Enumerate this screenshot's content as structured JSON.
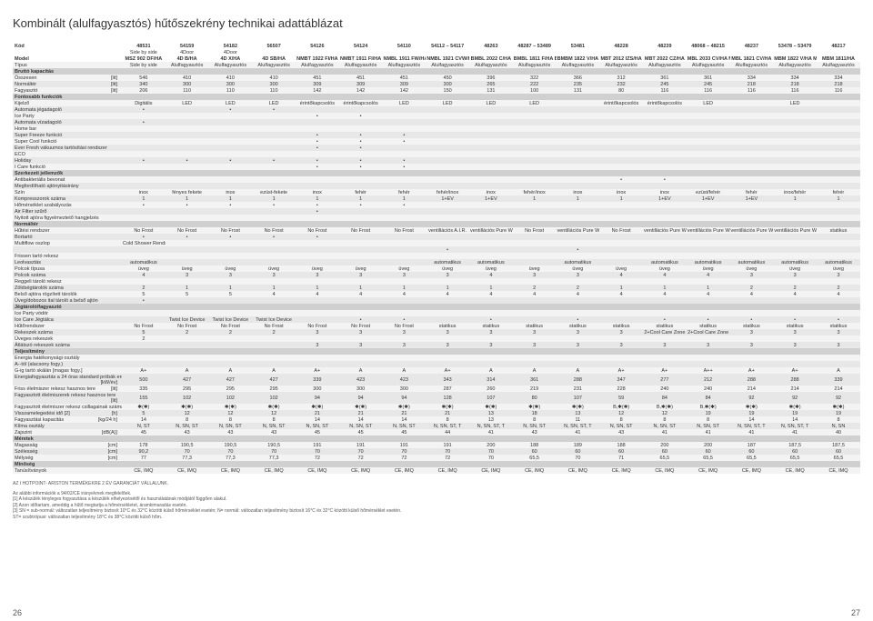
{
  "title": "Kombinált (alulfagyasztós) hűtőszekrény technikai adattáblázat",
  "pageL": "26",
  "pageR": "27",
  "warranty": "AZ I HOTPOINT- ARISTON TERMÉKEKRE 2 ÉV GARANCIÁT VÁLLALUNK.",
  "fn": [
    "Az alábbi információk a 94/02/CE irányelvnek megfelelőek.",
    "[1]  A készülék tényleges fogyasztása a készülék elhelyezésétől és használatának módjától függően alakul.",
    "[2]  Azon időtartam, ameddig a hűtő megtartja a hőmérsékletet, áramkimaradás esetén.",
    "[3]  SN = sub-normál: változatlan teljesítmény biztosít 10°C és 32°C közötti külső hőmérséklet esetén; N= normál: változatlan teljesítmény biztosít 16°C és 32°C közötti külső hőmérséklet esetén.",
    "ST= szubtrópusi: változatlan teljesítmény 18°C és 38°C közötti külső hőm."
  ],
  "cols": [
    "48531",
    "54159",
    "54182",
    "56507",
    "54126",
    "54124",
    "54110",
    "54112 – 54117",
    "48263",
    "48287 – 53489",
    "53481",
    "48228",
    "48239",
    "48068 – 48215",
    "48237",
    "53478 – 53479",
    "48217"
  ],
  "cols2": [
    "Side by side",
    "4Door",
    "4Door",
    "",
    "",
    "",
    "",
    "",
    "",
    "",
    "",
    "",
    "",
    "",
    "",
    "",
    ""
  ],
  "model": [
    "MSZ 902 DF/HA",
    "4D B/HA",
    "4D X/HA",
    "4D SB/HA",
    "NMBT 1922 FI/HA",
    "NMBT 1911 FI/HA",
    "NMBL 1911 FW/HA",
    "NMBL 1921 CVW/HA NMBL 1922 CVW/HA",
    "BMBL 2022 C/HA",
    "BMBL 1811 F/HA BMBL 1812 F/HA",
    "BMBM 1822 V/HA",
    "MBT 2012 IZS/HA",
    "MBT 2022 CZ/HA",
    "MBL 2033 CV/HA MBL 2031 CV/HA",
    "MBL 1821 CV/HA",
    "MBM 1822 V/HA MBM 1821 V/HA",
    "MBM 1811/HA"
  ],
  "rows": [
    {
      "k": "Típus",
      "v": [
        "Side by side",
        "Alulfagyasztós",
        "Alulfagyasztós",
        "Alulfagyasztós",
        "Alulfagyasztós",
        "Alulfagyasztós",
        "Alulfagyasztós",
        "Alulfagyasztós",
        "Alulfagyasztós",
        "Alulfagyasztós",
        "Alulfagyasztós",
        "Alulfagyasztós",
        "Alulfagyasztós",
        "Alulfagyasztós",
        "Alulfagyasztós",
        "Alulfagyasztós",
        "Alulfagyasztós"
      ]
    },
    {
      "sec": "Bruttó kapacitás"
    },
    {
      "k": "Összesen",
      "u": "[lit]",
      "v": [
        "546",
        "410",
        "410",
        "410",
        "451",
        "451",
        "451",
        "450",
        "396",
        "322",
        "366",
        "312",
        "361",
        "361",
        "334",
        "334",
        "334"
      ]
    },
    {
      "k": "Normáltér",
      "u": "[lit]",
      "v": [
        "340",
        "300",
        "300",
        "300",
        "309",
        "309",
        "309",
        "300",
        "265",
        "222",
        "235",
        "232",
        "245",
        "245",
        "218",
        "218",
        "218"
      ]
    },
    {
      "k": "Fagyasztó",
      "u": "[lit]",
      "v": [
        "206",
        "110",
        "110",
        "110",
        "142",
        "142",
        "142",
        "150",
        "131",
        "100",
        "131",
        "80",
        "116",
        "116",
        "116",
        "116",
        "116"
      ]
    },
    {
      "sec": "Fontosabb funkciók"
    },
    {
      "k": "Kijelző",
      "v": [
        "Digitális",
        "LED",
        "LED",
        "LED",
        "érintőkapcsolós",
        "érintőkapcsolós",
        "LED",
        "LED",
        "LED",
        "LED",
        "",
        "érintőkapcsolós",
        "érintőkapcsolós",
        "LED",
        "",
        "LED",
        ""
      ]
    },
    {
      "k": "Automata jégadagoló",
      "v": [
        "•",
        "",
        "•",
        "•",
        "",
        "",
        "",
        "",
        "",
        "",
        "",
        "",
        "",
        "",
        "",
        "",
        ""
      ]
    },
    {
      "k": "Ice Party",
      "v": [
        "",
        "",
        "",
        "",
        "•",
        "•",
        "",
        "",
        "",
        "",
        "",
        "",
        "",
        "",
        "",
        "",
        ""
      ]
    },
    {
      "k": "Automata vízadagoló",
      "v": [
        "•",
        "",
        "",
        "",
        "",
        "",
        "",
        "",
        "",
        "",
        "",
        "",
        "",
        "",
        "",
        "",
        ""
      ]
    },
    {
      "k": "Home bar",
      "v": [
        "",
        "",
        "",
        "",
        "",
        "",
        "",
        "",
        "",
        "",
        "",
        "",
        "",
        "",
        "",
        "",
        ""
      ]
    },
    {
      "k": "Super Freeze funkció",
      "v": [
        "",
        "",
        "",
        "",
        "•",
        "•",
        "•",
        "",
        "",
        "",
        "",
        "",
        "",
        "",
        "",
        "",
        ""
      ]
    },
    {
      "k": "Super Cool funkció",
      "v": [
        "",
        "",
        "",
        "",
        "•",
        "•",
        "•",
        "",
        "",
        "",
        "",
        "",
        "",
        "",
        "",
        "",
        ""
      ]
    },
    {
      "k": "Ever Fresh vákuumos tartósítási rendszer",
      "v": [
        "",
        "",
        "",
        "",
        "•",
        "•",
        "",
        "",
        "",
        "",
        "",
        "",
        "",
        "",
        "",
        "",
        ""
      ]
    },
    {
      "k": "ECO",
      "v": [
        "",
        "",
        "",
        "",
        "",
        "",
        "",
        "",
        "",
        "",
        "",
        "",
        "",
        "",
        "",
        "",
        ""
      ]
    },
    {
      "k": "Holiday",
      "v": [
        "•",
        "•",
        "•",
        "•",
        "•",
        "•",
        "•",
        "",
        "",
        "",
        "",
        "",
        "",
        "",
        "",
        "",
        ""
      ]
    },
    {
      "k": "I Care funkció",
      "v": [
        "",
        "",
        "",
        "",
        "•",
        "•",
        "•",
        "",
        "",
        "",
        "",
        "",
        "",
        "",
        "",
        "",
        ""
      ]
    },
    {
      "sec": "Szerkezeti jellemzők"
    },
    {
      "k": "Antibakteriális bevonat",
      "v": [
        "",
        "",
        "",
        "",
        "",
        "",
        "",
        "",
        "",
        "",
        "",
        "•",
        "•",
        "",
        "",
        "",
        ""
      ]
    },
    {
      "k": "Megfordítható ajtónyitásirány",
      "v": [
        "",
        "",
        "",
        "",
        "",
        "",
        "",
        "",
        "",
        "",
        "",
        "",
        "",
        "",
        "",
        "",
        ""
      ]
    },
    {
      "k": "Szín",
      "v": [
        "inox",
        "fényes fekete",
        "inox",
        "ezüst-fekete",
        "inox",
        "fehér",
        "fehér",
        "fehér/inox",
        "inox",
        "fehér/inox",
        "inox",
        "inox",
        "inox",
        "ezüst/fehér",
        "fehér",
        "inox/fehér",
        "fehér"
      ]
    },
    {
      "k": "Kompresszorok száma",
      "v": [
        "1",
        "1",
        "1",
        "1",
        "1",
        "1",
        "1",
        "1+EV",
        "1+EV",
        "1",
        "1",
        "1",
        "1+EV",
        "1+EV",
        "1+EV",
        "1",
        "1"
      ]
    },
    {
      "k": "Hőmérséklet szabályozás",
      "v": [
        "•",
        "•",
        "•",
        "•",
        "•",
        "•",
        "•",
        "",
        "",
        "",
        "",
        "",
        "",
        "",
        "",
        "",
        ""
      ]
    },
    {
      "k": "Air Filter szűrő",
      "v": [
        "",
        "",
        "",
        "",
        "•",
        "",
        "",
        "",
        "",
        "",
        "",
        "",
        "",
        "",
        "",
        "",
        ""
      ]
    },
    {
      "k": "Nyitott ajtóra figyelmeztető hangjelzés",
      "v": [
        "",
        "",
        "",
        "",
        "",
        "",
        "",
        "",
        "",
        "",
        "",
        "",
        "",
        "",
        "",
        "",
        ""
      ]
    },
    {
      "sec": "Normáltér"
    },
    {
      "k": "Hűtési rendszer",
      "v": [
        "No Frost",
        "No Frost",
        "No Frost",
        "No Frost",
        "No Frost",
        "No Frost",
        "No Frost",
        "ventillációs A.I.R.",
        "ventillációs Pure Wind",
        "No Frost",
        "ventillációs Pure Wind Plus",
        "No Frost",
        "ventillációs Pure Wind",
        "ventillációs Pure Wind",
        "ventillációs Pure Wind Wine Area",
        "ventillációs Pure Wind Wine Area",
        "statikus"
      ]
    },
    {
      "k": "Bortartó",
      "v": [
        "•",
        "•",
        "•",
        "•",
        "•",
        "",
        "",
        "",
        "",
        "",
        "",
        "",
        "",
        "",
        "",
        "",
        ""
      ]
    },
    {
      "k": "Multiflow oszlop",
      "v": [
        "Cold Shower Rendszer",
        "",
        "",
        "",
        "",
        "",
        "",
        "",
        "",
        "",
        "",
        "",
        "",
        "",
        "",
        "",
        ""
      ]
    },
    {
      "k": "",
      "v": [
        "",
        "",
        "",
        "",
        "",
        "",
        "",
        "•",
        "",
        "",
        "•",
        "",
        "",
        "",
        "",
        "",
        ""
      ]
    },
    {
      "k": "Frissen tartó rekesz",
      "v": [
        "",
        "",
        "",
        "",
        "",
        "",
        "",
        "",
        "",
        "",
        "",
        "",
        "",
        "",
        "",
        "",
        ""
      ]
    },
    {
      "k": "Leolvasztás",
      "v": [
        "automatikus",
        "",
        "",
        "",
        "",
        "",
        "",
        "automatikus",
        "automatikus",
        "",
        "automatikus",
        "",
        "automatikus",
        "automatikus",
        "automatikus",
        "automatikus",
        "automatikus"
      ]
    },
    {
      "k": "Polcok típusa",
      "v": [
        "üveg",
        "üveg",
        "üveg",
        "üveg",
        "üveg",
        "üveg",
        "üveg",
        "üveg",
        "üveg",
        "üveg",
        "üveg",
        "üveg",
        "üveg",
        "üveg",
        "üveg",
        "üveg",
        "üveg"
      ]
    },
    {
      "k": "Polcok száma",
      "v": [
        "4",
        "3",
        "3",
        "3",
        "3",
        "3",
        "3",
        "3",
        "4",
        "3",
        "3",
        "4",
        "4",
        "4",
        "3",
        "3",
        "3"
      ]
    },
    {
      "k": "Reggeli tároló rekesz",
      "v": [
        "",
        "",
        "",
        "",
        "",
        "",
        "",
        "",
        "",
        "",
        "",
        "",
        "",
        "",
        "",
        "",
        ""
      ]
    },
    {
      "k": "Zöldségtárolók száma",
      "v": [
        "2",
        "1",
        "1",
        "1",
        "1",
        "1",
        "1",
        "1",
        "1",
        "2",
        "2",
        "1",
        "1",
        "1",
        "2",
        "2",
        "2"
      ]
    },
    {
      "k": "Belső ajtóra rögzített tárolók",
      "v": [
        "5",
        "5",
        "5",
        "4",
        "4",
        "4",
        "4",
        "4",
        "4",
        "4",
        "4",
        "4",
        "4",
        "4",
        "4",
        "4",
        "4"
      ]
    },
    {
      "k": "Üveg/dobozos ital tároló a belső ajtón",
      "v": [
        "•",
        "",
        "",
        "",
        "",
        "",
        "",
        "",
        "",
        "",
        "",
        "",
        "",
        "",
        "",
        "",
        ""
      ]
    },
    {
      "sec": "Jégtároló/fagyasztó"
    },
    {
      "k": "Ice Party vödör",
      "v": [
        "",
        "",
        "",
        "",
        "",
        "",
        "",
        "",
        "",
        "",
        "",
        "",
        "",
        "",
        "",
        "",
        ""
      ]
    },
    {
      "k": "Ice Care Jégtálca",
      "v": [
        "",
        "Twist Ice Device",
        "Twist Ice Device",
        "Twist Ice Device",
        "",
        "•",
        "•",
        "",
        "•",
        "",
        "•",
        "",
        "•",
        "•",
        "•",
        "•",
        "•"
      ]
    },
    {
      "k": "Hűtőrendszer",
      "v": [
        "No Frost",
        "No Frost",
        "No Frost",
        "No Frost",
        "No Frost",
        "No Frost",
        "No Frost",
        "statikus",
        "statikus",
        "statikus",
        "statikus",
        "statikus",
        "statikus",
        "statikus",
        "statikus",
        "statikus",
        "statikus"
      ]
    },
    {
      "k": "Rekeszek száma",
      "v": [
        "5",
        "2",
        "2",
        "2",
        "3",
        "3",
        "3",
        "3",
        "3",
        "3",
        "3",
        "3",
        "2+Cool Care Zone",
        "2+Cool Care Zone",
        "3",
        "3",
        "3"
      ]
    },
    {
      "k": "Üveges rekeszek",
      "v": [
        "2",
        "",
        "",
        "",
        "",
        "",
        "",
        "",
        "",
        "",
        "",
        "",
        "",
        "",
        "",
        "",
        ""
      ]
    },
    {
      "k": "Átlátszó rekeszek száma",
      "v": [
        "",
        "",
        "",
        "",
        "3",
        "3",
        "3",
        "3",
        "3",
        "3",
        "3",
        "3",
        "3",
        "3",
        "3",
        "3",
        "3"
      ]
    },
    {
      "sec": "Teljesítmény"
    },
    {
      "k": "Energia hatékonysági osztály",
      "v": [
        "",
        "",
        "",
        "",
        "",
        "",
        "",
        "",
        "",
        "",
        "",
        "",
        "",
        "",
        "",
        "",
        ""
      ]
    },
    {
      "k": "A--tól (alacsony fogy.)",
      "v": [
        "",
        "",
        "",
        "",
        "",
        "",
        "",
        "",
        "",
        "",
        "",
        "",
        "",
        "",
        "",
        "",
        ""
      ]
    },
    {
      "k": "G-ig tartó skálán [magas fogy.]",
      "v": [
        "A+",
        "A",
        "A",
        "A",
        "A+",
        "A",
        "A",
        "A+",
        "A",
        "A",
        "A",
        "A+",
        "A+",
        "A++",
        "A+",
        "A+",
        "A"
      ]
    },
    {
      "k": "Energiafogyasztás a 24 óras standard próbák eredményei alapján [1]",
      "u": "[kW/év]",
      "v": [
        "500",
        "427",
        "427",
        "427",
        "339",
        "423",
        "423",
        "343",
        "314",
        "361",
        "288",
        "347",
        "277",
        "212",
        "288",
        "288",
        "339"
      ]
    },
    {
      "k": "Friss élelmiszer rekesz hasznos tere",
      "u": "[lit]",
      "v": [
        "335",
        "295",
        "295",
        "295",
        "300",
        "300",
        "300",
        "287",
        "260",
        "219",
        "231",
        "228",
        "240",
        "240",
        "214",
        "214",
        "214"
      ]
    },
    {
      "k": "Fagyasztott élelmiszerek rekesz hasznos tere",
      "u": "[lit]",
      "v": [
        "155",
        "102",
        "102",
        "102",
        "94",
        "94",
        "94",
        "128",
        "107",
        "80",
        "107",
        "59",
        "84",
        "84",
        "92",
        "92",
        "92"
      ]
    },
    {
      "k": "Fagyasztott élelmiszer rekesz csillagainak száma",
      "v": [
        "✱(✱)",
        "✱(✱)",
        "✱(✱)",
        "✱(✱)",
        "✱(✱)",
        "✱(✱)",
        "✱(✱)",
        "✱(✱)",
        "✱(✱)",
        "✱(✱)",
        "✱(✱)",
        "B,✱(✱)",
        "B,✱(✱)",
        "B,✱(✱)",
        "✱(✱)",
        "✱(✱)",
        "✱(✱)"
      ]
    },
    {
      "k": "Visszamelegedési idő [2]",
      "u": "[h]",
      "v": [
        "5",
        "12",
        "12",
        "12",
        "21",
        "21",
        "21",
        "21",
        "13",
        "18",
        "13",
        "12",
        "12",
        "19",
        "19",
        "19",
        "19"
      ]
    },
    {
      "k": "Fagyasztási kapacitás",
      "u": "[kg/24 h]",
      "v": [
        "14",
        "8",
        "8",
        "8",
        "14",
        "14",
        "14",
        "8",
        "13",
        "8",
        "11",
        "8",
        "8",
        "8",
        "14",
        "14",
        "8"
      ]
    },
    {
      "k": "Klíma osztály",
      "v": [
        "N, ST",
        "N, SN, ST",
        "N, SN, ST",
        "N, SN, ST",
        "N, SN, ST",
        "N, SN, ST",
        "N, SN, ST",
        "N, SN, ST, T",
        "N, SN, ST, T",
        "N, SN, ST",
        "N, SN, ST, T",
        "N, SN, ST",
        "N, SN, ST",
        "N, SN, ST",
        "N, SN, ST, T",
        "N, SN, ST, T",
        "N, SN"
      ]
    },
    {
      "k": "Zajszint",
      "u": "[dB(A)]",
      "v": [
        "45",
        "43",
        "43",
        "43",
        "45",
        "45",
        "45",
        "44",
        "41",
        "43",
        "41",
        "43",
        "41",
        "41",
        "41",
        "41",
        "40"
      ]
    },
    {
      "sec": "Méretek"
    },
    {
      "k": "Magasság",
      "u": "[cm]",
      "v": [
        "178",
        "190,5",
        "190,5",
        "190,5",
        "191",
        "191",
        "191",
        "191",
        "200",
        "188",
        "189",
        "188",
        "200",
        "200",
        "187",
        "187,5",
        "187,5"
      ]
    },
    {
      "k": "Szélesség",
      "u": "[cm]",
      "v": [
        "90,2",
        "70",
        "70",
        "70",
        "70",
        "70",
        "70",
        "70",
        "70",
        "60",
        "60",
        "60",
        "60",
        "60",
        "60",
        "60",
        "60"
      ]
    },
    {
      "k": "Mélység",
      "u": "[cm]",
      "v": [
        "77",
        "77,3",
        "77,3",
        "77,3",
        "72",
        "72",
        "72",
        "72",
        "70",
        "65,5",
        "70",
        "71",
        "65,5",
        "65,5",
        "65,5",
        "65,5",
        "65,5"
      ]
    },
    {
      "sec": "Minőség"
    },
    {
      "k": "Tanúsítványok",
      "v": [
        "CE, IMQ",
        "CE, IMQ",
        "CE, IMQ",
        "CE, IMQ",
        "CE, IMQ",
        "CE, IMQ",
        "CE, IMQ",
        "CE, IMQ",
        "CE, IMQ",
        "CE, IMQ",
        "CE, IMQ",
        "CE, IMQ",
        "CE, IMQ",
        "CE, IMQ",
        "CE, IMQ",
        "CE, IMQ",
        "CE, IMQ"
      ]
    }
  ]
}
